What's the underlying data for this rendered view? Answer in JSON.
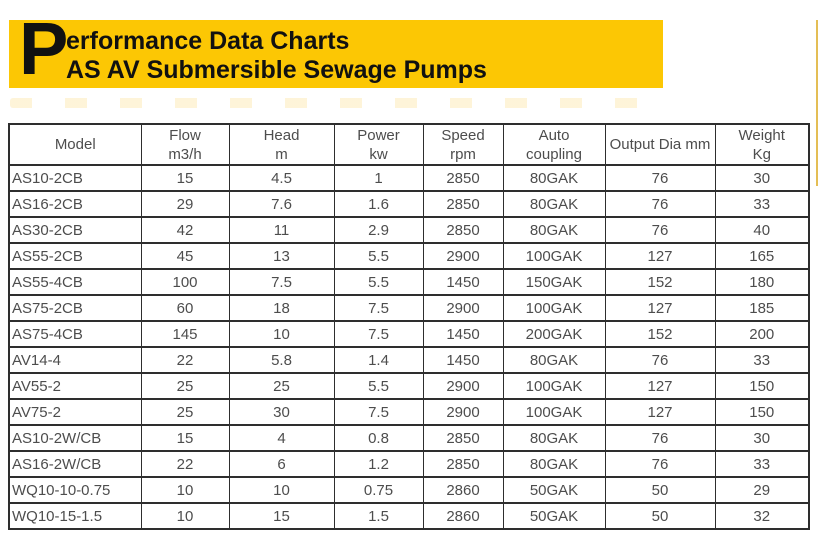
{
  "banner": {
    "dropcap": "P",
    "title_rest": "erformance Data Charts",
    "subtitle": "AS AV Submersible Sewage Pumps"
  },
  "colors": {
    "banner_bg": "#FCC704",
    "accent_line": "#E4BE55",
    "table_border": "#2e2e2e",
    "table_text": "#4d4d4d",
    "title_text": "#111111"
  },
  "table": {
    "headers": [
      "Model",
      "Flow\nm3/h",
      "Head\nm",
      "Power\nkw",
      "Speed\nrpm",
      "Auto\ncoupling",
      "Output Dia mm",
      "Weight\nKg"
    ],
    "rows": [
      [
        "AS10-2CB",
        "15",
        "4.5",
        "1",
        "2850",
        "80GAK",
        "76",
        "30"
      ],
      [
        "AS16-2CB",
        "29",
        "7.6",
        "1.6",
        "2850",
        "80GAK",
        "76",
        "33"
      ],
      [
        "AS30-2CB",
        "42",
        "11",
        "2.9",
        "2850",
        "80GAK",
        "76",
        "40"
      ],
      [
        "AS55-2CB",
        "45",
        "13",
        "5.5",
        "2900",
        "100GAK",
        "127",
        "165"
      ],
      [
        "AS55-4CB",
        "100",
        "7.5",
        "5.5",
        "1450",
        "150GAK",
        "152",
        "180"
      ],
      [
        "AS75-2CB",
        "60",
        "18",
        "7.5",
        "2900",
        "100GAK",
        "127",
        "185"
      ],
      [
        "AS75-4CB",
        "145",
        "10",
        "7.5",
        "1450",
        "200GAK",
        "152",
        "200"
      ],
      [
        "AV14-4",
        "22",
        "5.8",
        "1.4",
        "1450",
        "80GAK",
        "76",
        "33"
      ],
      [
        "AV55-2",
        "25",
        "25",
        "5.5",
        "2900",
        "100GAK",
        "127",
        "150"
      ],
      [
        "AV75-2",
        "25",
        "30",
        "7.5",
        "2900",
        "100GAK",
        "127",
        "150"
      ],
      [
        "AS10-2W/CB",
        "15",
        "4",
        "0.8",
        "2850",
        "80GAK",
        "76",
        "30"
      ],
      [
        "AS16-2W/CB",
        "22",
        "6",
        "1.2",
        "2850",
        "80GAK",
        "76",
        "33"
      ],
      [
        "WQ10-10-0.75",
        "10",
        "10",
        "0.75",
        "2860",
        "50GAK",
        "50",
        "29"
      ],
      [
        "WQ10-15-1.5",
        "10",
        "15",
        "1.5",
        "2860",
        "50GAK",
        "50",
        "32"
      ]
    ]
  }
}
